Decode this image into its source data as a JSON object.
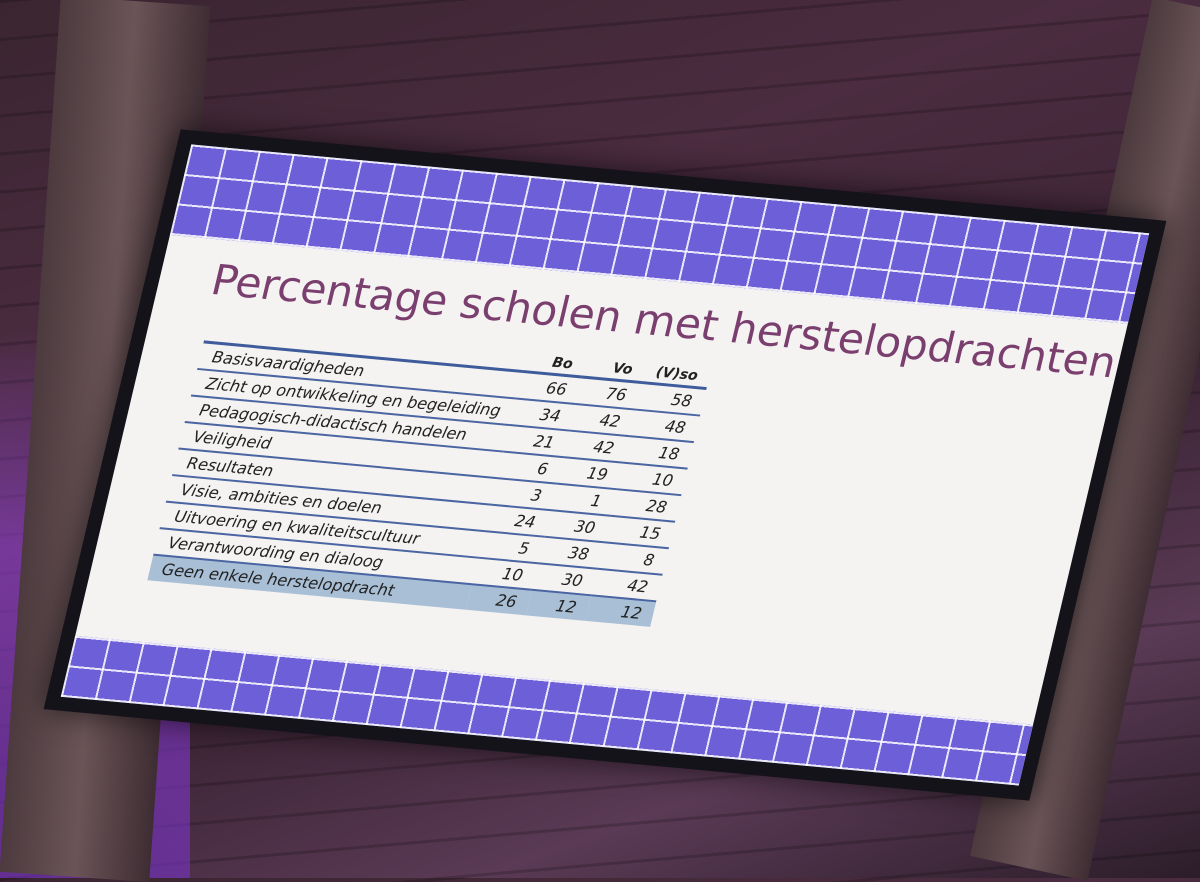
{
  "slide": {
    "title": "Percentage scholen met herstelopdrachten",
    "table": {
      "columns": [
        "Bo",
        "Vo",
        "(V)so"
      ],
      "rows": [
        [
          "Basisvaardigheden",
          66,
          76,
          58
        ],
        [
          "Zicht op ontwikkeling en begeleiding",
          34,
          42,
          48
        ],
        [
          "Pedagogisch-didactisch handelen",
          21,
          42,
          18
        ],
        [
          "Veiligheid",
          6,
          19,
          10
        ],
        [
          "Resultaten",
          3,
          1,
          28
        ],
        [
          "Visie, ambities en doelen",
          24,
          30,
          15
        ],
        [
          "Uitvoering en kwaliteitscultuur",
          5,
          38,
          8
        ],
        [
          "Verantwoording en dialoog",
          10,
          30,
          42
        ],
        [
          "Geen enkele herstelopdracht",
          26,
          12,
          12
        ]
      ]
    }
  }
}
